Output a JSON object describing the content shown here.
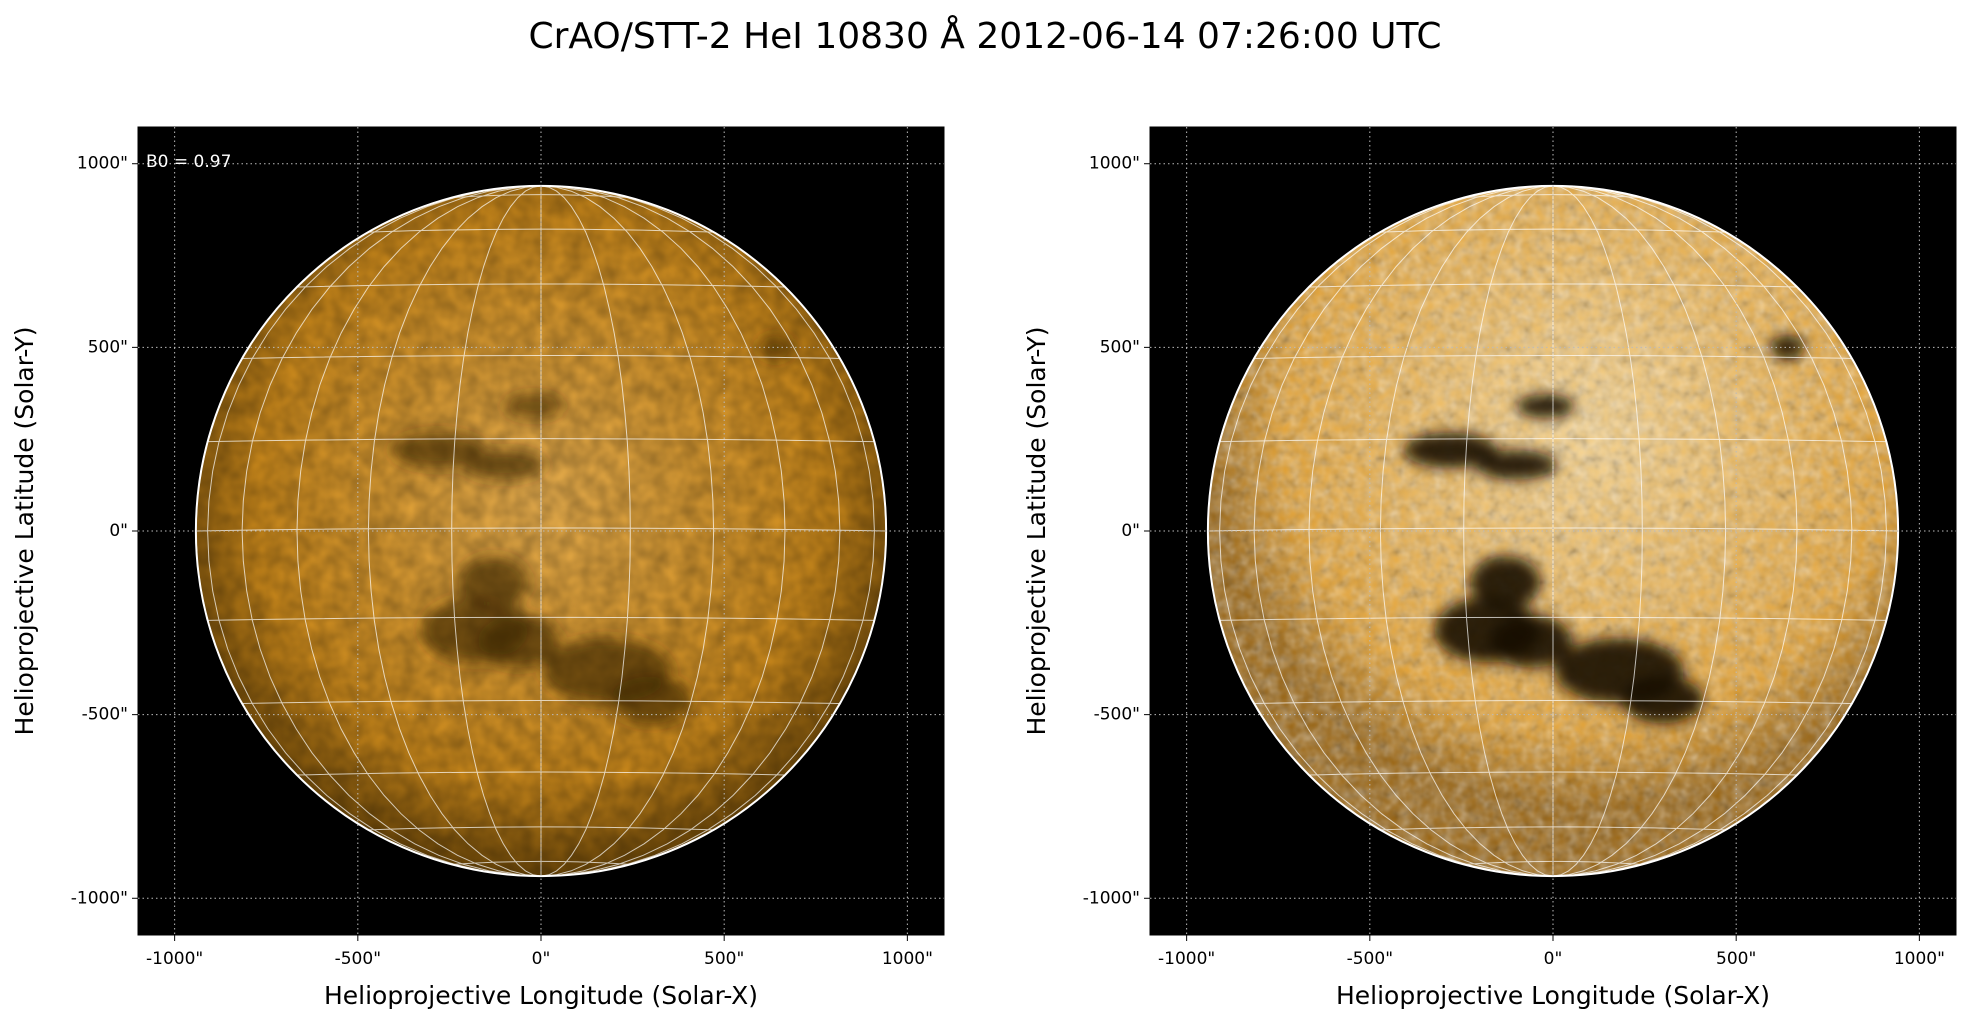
{
  "title": "CrAO/STT-2 HeI 10830 Å 2012-06-14 07:26:00 UTC",
  "chart_data": [
    {
      "type": "image",
      "annotation": "B0 = 0.97",
      "xlabel": "Helioprojective Longitude (Solar-X)",
      "ylabel": "Helioprojective Latitude (Solar-Y)",
      "xlim": [
        -1100,
        1100
      ],
      "ylim": [
        -1100,
        1100
      ],
      "xticks": [
        {
          "value": -1000,
          "label": "-1000\""
        },
        {
          "value": -500,
          "label": "-500\""
        },
        {
          "value": 0,
          "label": "0\""
        },
        {
          "value": 500,
          "label": "500\""
        },
        {
          "value": 1000,
          "label": "1000\""
        }
      ],
      "yticks": [
        {
          "value": -1000,
          "label": "-1000\""
        },
        {
          "value": -500,
          "label": "-500\""
        },
        {
          "value": 0,
          "label": "0\""
        },
        {
          "value": 500,
          "label": "500\""
        },
        {
          "value": 1000,
          "label": "1000\""
        }
      ],
      "grid": true
    },
    {
      "type": "image",
      "xlabel": "Helioprojective Longitude (Solar-X)",
      "ylabel": "Helioprojective Latitude (Solar-Y)",
      "xlim": [
        -1100,
        1100
      ],
      "ylim": [
        -1100,
        1100
      ],
      "xticks": [
        {
          "value": -1000,
          "label": "-1000\""
        },
        {
          "value": -500,
          "label": "-500\""
        },
        {
          "value": 0,
          "label": "0\""
        },
        {
          "value": 500,
          "label": "500\""
        },
        {
          "value": 1000,
          "label": "1000\""
        }
      ],
      "yticks": [
        {
          "value": -1000,
          "label": "-1000\""
        },
        {
          "value": -500,
          "label": "-500\""
        },
        {
          "value": 0,
          "label": "0\""
        },
        {
          "value": 500,
          "label": "500\""
        },
        {
          "value": 1000,
          "label": "1000\""
        }
      ],
      "grid": true
    }
  ]
}
